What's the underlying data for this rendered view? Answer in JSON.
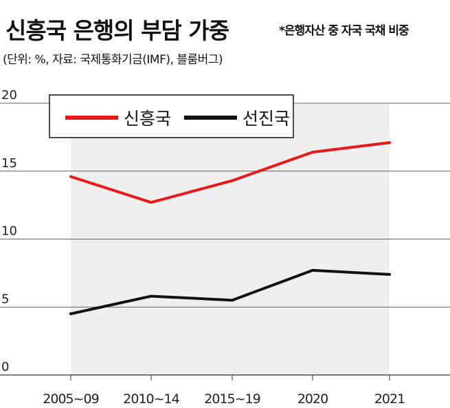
{
  "header": {
    "title": "신흥국 은행의 부담 가중",
    "subtitle": "*은행자산 중 자국 국채 비중",
    "source": "(단위: %, 자료: 국제통화기금(IMF), 블룸버그)"
  },
  "colors": {
    "emerging": "#e8191a",
    "advanced": "#111111",
    "plot_bg": "#efefef",
    "grid": "#333333"
  },
  "chart_data": {
    "type": "line",
    "title": "신흥국 은행의 부담 가중",
    "categories": [
      "2005~09",
      "2010~14",
      "2015~19",
      "2020",
      "2021"
    ],
    "ylim": [
      0,
      20
    ],
    "yticks": [
      0,
      5,
      10,
      15,
      20
    ],
    "xlabel": "",
    "ylabel": "",
    "grid": true,
    "legend": "top-left",
    "series": [
      {
        "name": "신흥국",
        "values": [
          14.6,
          12.7,
          14.3,
          16.4,
          17.1
        ]
      },
      {
        "name": "선진국",
        "values": [
          4.5,
          5.8,
          5.5,
          7.7,
          7.4
        ]
      }
    ]
  }
}
